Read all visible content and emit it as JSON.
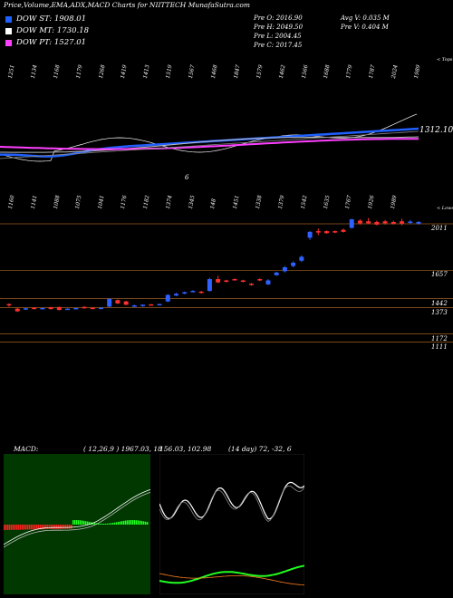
{
  "title": "Price,Volume,EMA,ADX,MACD Charts for NIITTECH MunafaSutra.com",
  "legend": [
    {
      "label": "DOW ST: 1908.01",
      "color": "#2060ff"
    },
    {
      "label": "DOW MT: 1730.18",
      "color": "#ffffff"
    },
    {
      "label": "DOW PT: 1527.01",
      "color": "#ff40ff"
    }
  ],
  "stats": {
    "col1": [
      "Pre  O: 2016.90",
      "Pre  H: 2049.50",
      "Pre  L: 2004.45",
      "Pre  C: 2017.45"
    ],
    "col2": [
      "Avg V: 0.035 M",
      "Pre  V: 0.404  M"
    ]
  },
  "top_label": "< Tops",
  "low_label": "< Lows",
  "ema_value": "1312.10",
  "ema_marker": "6",
  "top_ticks": [
    "1251",
    "1134",
    "1168",
    "1179",
    "1268",
    "1419",
    "1413",
    "1519",
    "1567",
    "1468",
    "1847",
    "1579",
    "1462",
    "1566",
    "1688",
    "1779",
    "1787",
    "2024",
    "1989"
  ],
  "low_ticks": [
    "1160",
    "1141",
    "1088",
    "1075",
    "1041",
    "1176",
    "1182",
    "1374",
    "1345",
    "148",
    "1451",
    "1338",
    "1379",
    "1542",
    "1635",
    "1767",
    "1926",
    "1989"
  ],
  "chart_data": {
    "type": "candlestick",
    "title": "Price,Volume,EMA,ADX,MACD Charts for NIITTECH MunafaSutra.com",
    "price_levels": [
      2011,
      1657,
      1442,
      1373,
      1172,
      1111
    ],
    "ylim": [
      1080,
      2080
    ],
    "candles": [
      {
        "o": 1390,
        "c": 1400,
        "h": 1405,
        "l": 1380,
        "up": false
      },
      {
        "o": 1365,
        "c": 1345,
        "h": 1370,
        "l": 1340,
        "up": false
      },
      {
        "o": 1360,
        "c": 1368,
        "h": 1372,
        "l": 1355,
        "up": true
      },
      {
        "o": 1372,
        "c": 1365,
        "h": 1375,
        "l": 1360,
        "up": false
      },
      {
        "o": 1368,
        "c": 1370,
        "h": 1372,
        "l": 1365,
        "up": true
      },
      {
        "o": 1375,
        "c": 1362,
        "h": 1380,
        "l": 1360,
        "up": false
      },
      {
        "o": 1378,
        "c": 1355,
        "h": 1380,
        "l": 1352,
        "up": false
      },
      {
        "o": 1360,
        "c": 1365,
        "h": 1368,
        "l": 1358,
        "up": true
      },
      {
        "o": 1368,
        "c": 1370,
        "h": 1372,
        "l": 1364,
        "up": true
      },
      {
        "o": 1368,
        "c": 1378,
        "h": 1385,
        "l": 1365,
        "up": false
      },
      {
        "o": 1372,
        "c": 1366,
        "h": 1375,
        "l": 1362,
        "up": false
      },
      {
        "o": 1365,
        "c": 1372,
        "h": 1376,
        "l": 1362,
        "up": true
      },
      {
        "o": 1380,
        "c": 1440,
        "h": 1445,
        "l": 1378,
        "up": true
      },
      {
        "o": 1430,
        "c": 1405,
        "h": 1435,
        "l": 1400,
        "up": false
      },
      {
        "o": 1420,
        "c": 1395,
        "h": 1425,
        "l": 1392,
        "up": false
      },
      {
        "o": 1390,
        "c": 1380,
        "h": 1395,
        "l": 1378,
        "up": true
      },
      {
        "o": 1385,
        "c": 1395,
        "h": 1398,
        "l": 1380,
        "up": true
      },
      {
        "o": 1398,
        "c": 1395,
        "h": 1400,
        "l": 1390,
        "up": false
      },
      {
        "o": 1395,
        "c": 1400,
        "h": 1403,
        "l": 1392,
        "up": true
      },
      {
        "o": 1470,
        "c": 1420,
        "h": 1475,
        "l": 1415,
        "up": true
      },
      {
        "o": 1478,
        "c": 1465,
        "h": 1485,
        "l": 1460,
        "up": true
      },
      {
        "o": 1490,
        "c": 1480,
        "h": 1495,
        "l": 1475,
        "up": true
      },
      {
        "o": 1495,
        "c": 1500,
        "h": 1505,
        "l": 1490,
        "up": true
      },
      {
        "o": 1495,
        "c": 1485,
        "h": 1500,
        "l": 1480,
        "up": false
      },
      {
        "o": 1500,
        "c": 1590,
        "h": 1600,
        "l": 1495,
        "up": true
      },
      {
        "o": 1590,
        "c": 1565,
        "h": 1615,
        "l": 1560,
        "up": false
      },
      {
        "o": 1575,
        "c": 1580,
        "h": 1585,
        "l": 1565,
        "up": false
      },
      {
        "o": 1590,
        "c": 1585,
        "h": 1595,
        "l": 1580,
        "up": false
      },
      {
        "o": 1580,
        "c": 1570,
        "h": 1585,
        "l": 1565,
        "up": false
      },
      {
        "o": 1555,
        "c": 1550,
        "h": 1560,
        "l": 1540,
        "up": false
      },
      {
        "o": 1580,
        "c": 1590,
        "h": 1595,
        "l": 1575,
        "up": false
      },
      {
        "o": 1550,
        "c": 1580,
        "h": 1590,
        "l": 1545,
        "up": true
      },
      {
        "o": 1640,
        "c": 1620,
        "h": 1645,
        "l": 1615,
        "up": true
      },
      {
        "o": 1680,
        "c": 1650,
        "h": 1690,
        "l": 1640,
        "up": true
      },
      {
        "o": 1715,
        "c": 1690,
        "h": 1725,
        "l": 1680,
        "up": true
      },
      {
        "o": 1760,
        "c": 1730,
        "h": 1770,
        "l": 1720,
        "up": true
      },
      {
        "o": 1905,
        "c": 1950,
        "h": 1955,
        "l": 1890,
        "up": true
      },
      {
        "o": 1955,
        "c": 1945,
        "h": 1975,
        "l": 1925,
        "up": false
      },
      {
        "o": 1955,
        "c": 1940,
        "h": 1960,
        "l": 1935,
        "up": false
      },
      {
        "o": 1955,
        "c": 1945,
        "h": 1960,
        "l": 1940,
        "up": false
      },
      {
        "o": 1965,
        "c": 1950,
        "h": 1975,
        "l": 1945,
        "up": false
      },
      {
        "o": 1980,
        "c": 2045,
        "h": 2050,
        "l": 1975,
        "up": true
      },
      {
        "o": 2035,
        "c": 2015,
        "h": 2045,
        "l": 2005,
        "up": false
      },
      {
        "o": 2030,
        "c": 2015,
        "h": 2055,
        "l": 2010,
        "up": false
      },
      {
        "o": 2025,
        "c": 2005,
        "h": 2035,
        "l": 2000,
        "up": false
      },
      {
        "o": 2030,
        "c": 2015,
        "h": 2040,
        "l": 2005,
        "up": false
      },
      {
        "o": 2025,
        "c": 2010,
        "h": 2035,
        "l": 2005,
        "up": false
      },
      {
        "o": 2030,
        "c": 2012,
        "h": 2050,
        "l": 2000,
        "up": false
      },
      {
        "o": 2020,
        "c": 2028,
        "h": 2040,
        "l": 2010,
        "up": true
      },
      {
        "o": 2012,
        "c": 2025,
        "h": 2032,
        "l": 2005,
        "up": true
      }
    ],
    "macd": {
      "label": "MACD:",
      "params": "( 12,26,9 ) 1967.03,  18",
      "background": "#004000"
    },
    "adx": {
      "params": "(14  day) 72,  -32,  6",
      "values_label": "156.03,  102.98"
    }
  }
}
